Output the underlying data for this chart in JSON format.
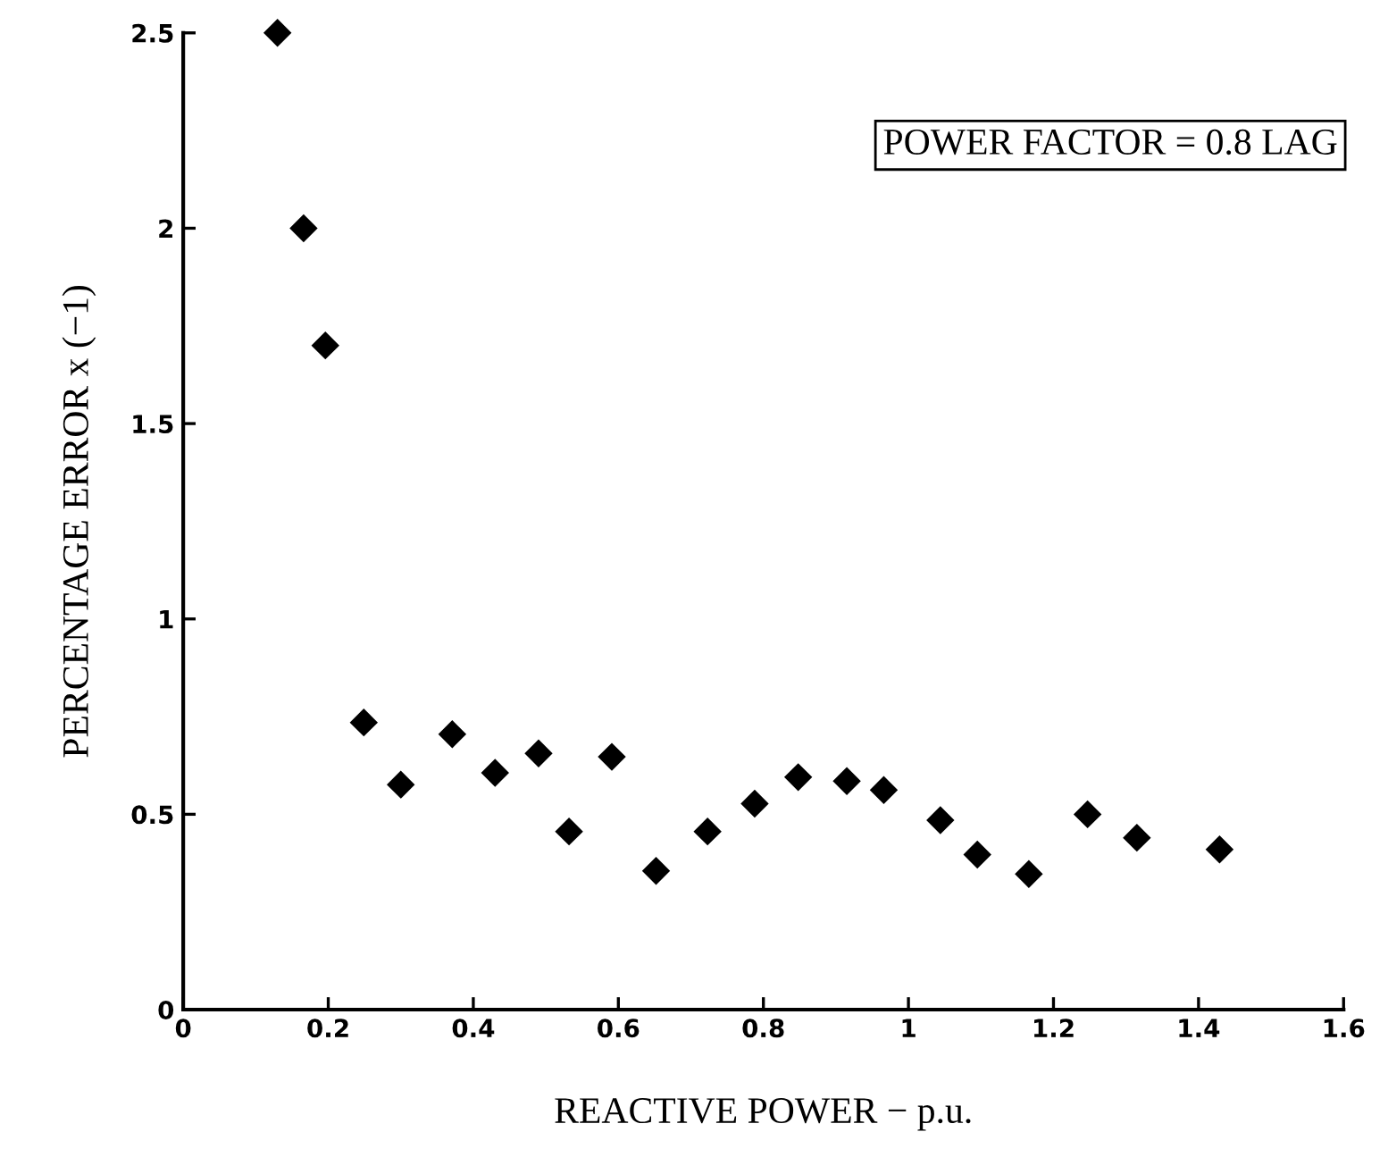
{
  "chart_data": {
    "type": "scatter",
    "xlabel": "REACTIVE POWER − p.u.",
    "ylabel": "PERCENTAGE ERROR x (−1)",
    "annotations": [
      "POWER FACTOR = 0.8 LAG"
    ],
    "x": [
      0.13,
      0.166,
      0.196,
      0.249,
      0.3,
      0.371,
      0.43,
      0.49,
      0.532,
      0.591,
      0.652,
      0.723,
      0.788,
      0.848,
      0.915,
      0.966,
      1.044,
      1.095,
      1.166,
      1.247,
      1.315,
      1.429
    ],
    "series": [
      {
        "color": "#000000",
        "values": [
          2.5,
          2.0,
          1.7,
          0.735,
          0.576,
          0.705,
          0.606,
          0.656,
          0.456,
          0.647,
          0.355,
          0.456,
          0.527,
          0.595,
          0.585,
          0.562,
          0.485,
          0.397,
          0.347,
          0.5,
          0.44,
          0.41
        ]
      }
    ],
    "marker": "diamond",
    "grid": false,
    "legend": false,
    "xlim": [
      0,
      1.6
    ],
    "xticks": [
      0,
      0.2,
      0.4,
      0.6,
      0.8,
      1,
      1.2,
      1.4,
      1.6
    ],
    "ylim": [
      0,
      2.5
    ],
    "yticks": [
      0,
      0.5,
      1,
      1.5,
      2,
      2.5
    ]
  }
}
